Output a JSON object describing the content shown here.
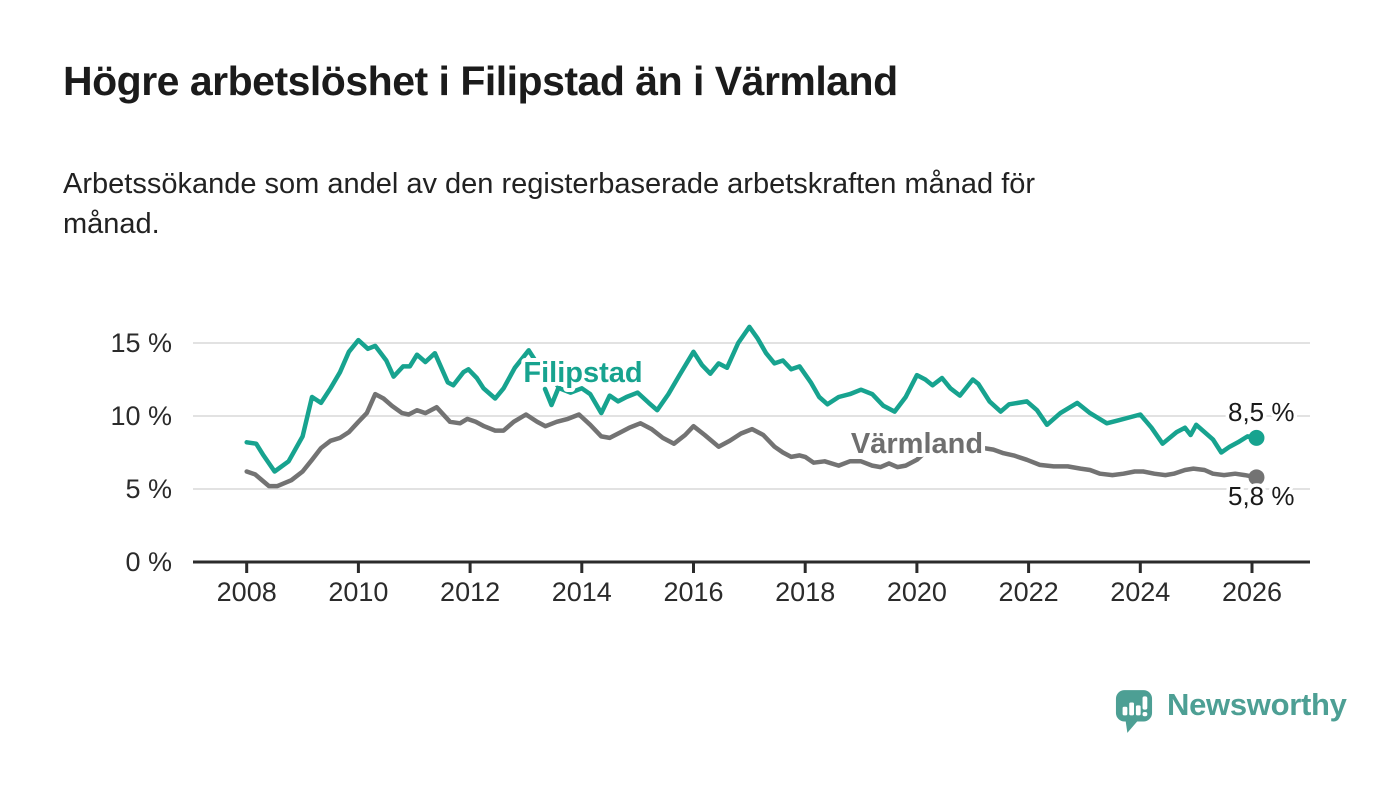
{
  "chart_data": {
    "type": "line",
    "title": "Högre arbetslöshet i Filipstad än i Värmland",
    "subtitle_lines": [
      "Arbetssökande som andel av den registerbaserade arbetskraften månad för",
      "månad."
    ],
    "grid": true,
    "legend": "inline-labels",
    "xlim": [
      2007.85,
      2027.05
    ],
    "ylim": [
      0,
      16.8
    ],
    "x_ticks": [
      2008,
      2010,
      2012,
      2014,
      2016,
      2018,
      2020,
      2022,
      2024,
      2026
    ],
    "x_tick_labels": [
      "2008",
      "2010",
      "2012",
      "2014",
      "2016",
      "2018",
      "2020",
      "2022",
      "2024",
      "2026"
    ],
    "y_ticks": [
      0,
      5,
      10,
      15
    ],
    "y_tick_labels": [
      "0 %",
      "5 %",
      "10 %",
      "15 %"
    ],
    "series": [
      {
        "name": "Filipstad",
        "color": "#17a38f",
        "end_label": "8,5 %",
        "end_value": 8.5,
        "points": [
          [
            2008.0,
            8.2
          ],
          [
            2008.17,
            8.1
          ],
          [
            2008.3,
            7.3
          ],
          [
            2008.5,
            6.2
          ],
          [
            2008.75,
            6.9
          ],
          [
            2009.0,
            8.6
          ],
          [
            2009.17,
            11.3
          ],
          [
            2009.33,
            10.9
          ],
          [
            2009.5,
            11.9
          ],
          [
            2009.67,
            13.0
          ],
          [
            2009.83,
            14.4
          ],
          [
            2010.0,
            15.2
          ],
          [
            2010.17,
            14.6
          ],
          [
            2010.3,
            14.8
          ],
          [
            2010.5,
            13.8
          ],
          [
            2010.63,
            12.7
          ],
          [
            2010.8,
            13.4
          ],
          [
            2010.92,
            13.4
          ],
          [
            2011.05,
            14.2
          ],
          [
            2011.2,
            13.7
          ],
          [
            2011.37,
            14.3
          ],
          [
            2011.6,
            12.3
          ],
          [
            2011.7,
            12.1
          ],
          [
            2011.88,
            13.0
          ],
          [
            2011.97,
            13.2
          ],
          [
            2012.12,
            12.6
          ],
          [
            2012.24,
            11.9
          ],
          [
            2012.45,
            11.2
          ],
          [
            2012.6,
            11.9
          ],
          [
            2012.8,
            13.3
          ],
          [
            2013.05,
            14.5
          ],
          [
            2013.2,
            13.6
          ],
          [
            2013.35,
            12.9
          ],
          [
            2013.5,
            12.4
          ],
          [
            2013.6,
            11.9
          ],
          [
            2013.8,
            11.6
          ],
          [
            2014.0,
            11.9
          ],
          [
            2014.15,
            11.5
          ],
          [
            2014.35,
            10.2
          ],
          [
            2014.5,
            11.4
          ],
          [
            2014.65,
            11.0
          ],
          [
            2014.8,
            11.3
          ],
          [
            2015.0,
            11.6
          ],
          [
            2015.2,
            10.9
          ],
          [
            2015.35,
            10.4
          ],
          [
            2015.55,
            11.5
          ],
          [
            2015.75,
            12.8
          ],
          [
            2016.0,
            14.4
          ],
          [
            2016.15,
            13.5
          ],
          [
            2016.3,
            12.9
          ],
          [
            2016.45,
            13.6
          ],
          [
            2016.6,
            13.3
          ],
          [
            2016.8,
            15.0
          ],
          [
            2017.0,
            16.1
          ],
          [
            2017.15,
            15.3
          ],
          [
            2017.3,
            14.3
          ],
          [
            2017.45,
            13.6
          ],
          [
            2017.6,
            13.8
          ],
          [
            2017.75,
            13.2
          ],
          [
            2017.9,
            13.4
          ],
          [
            2018.1,
            12.3
          ],
          [
            2018.25,
            11.3
          ],
          [
            2018.4,
            10.8
          ],
          [
            2018.6,
            11.3
          ],
          [
            2018.8,
            11.5
          ],
          [
            2019.0,
            11.8
          ],
          [
            2019.2,
            11.5
          ],
          [
            2019.4,
            10.7
          ],
          [
            2019.6,
            10.3
          ],
          [
            2019.8,
            11.3
          ],
          [
            2020.0,
            12.8
          ],
          [
            2020.15,
            12.5
          ],
          [
            2020.28,
            12.1
          ],
          [
            2020.45,
            12.6
          ],
          [
            2020.6,
            11.9
          ],
          [
            2020.77,
            11.4
          ],
          [
            2021.0,
            12.5
          ],
          [
            2021.1,
            12.2
          ],
          [
            2021.3,
            11.0
          ],
          [
            2021.5,
            10.3
          ],
          [
            2021.65,
            10.8
          ],
          [
            2021.97,
            11.0
          ],
          [
            2022.15,
            10.4
          ],
          [
            2022.33,
            9.4
          ],
          [
            2022.57,
            10.2
          ],
          [
            2022.87,
            10.9
          ],
          [
            2023.1,
            10.2
          ],
          [
            2023.4,
            9.5
          ],
          [
            2023.6,
            9.7
          ],
          [
            2023.8,
            9.9
          ],
          [
            2024.0,
            10.1
          ],
          [
            2024.2,
            9.2
          ],
          [
            2024.4,
            8.1
          ],
          [
            2024.65,
            8.9
          ],
          [
            2024.8,
            9.2
          ],
          [
            2024.9,
            8.7
          ],
          [
            2025.0,
            9.4
          ],
          [
            2025.15,
            8.9
          ],
          [
            2025.3,
            8.4
          ],
          [
            2025.45,
            7.5
          ],
          [
            2025.6,
            7.9
          ],
          [
            2025.75,
            8.2
          ],
          [
            2025.92,
            8.6
          ],
          [
            2026.08,
            8.5
          ]
        ]
      },
      {
        "name": "Värmland",
        "color": "#737373",
        "label_color": "#6f6f6f",
        "end_label": "5,8 %",
        "end_value": 5.8,
        "points": [
          [
            2008.0,
            6.2
          ],
          [
            2008.15,
            6.0
          ],
          [
            2008.4,
            5.2
          ],
          [
            2008.55,
            5.2
          ],
          [
            2008.8,
            5.6
          ],
          [
            2009.0,
            6.2
          ],
          [
            2009.17,
            7.0
          ],
          [
            2009.33,
            7.8
          ],
          [
            2009.5,
            8.3
          ],
          [
            2009.67,
            8.5
          ],
          [
            2009.83,
            8.9
          ],
          [
            2010.0,
            9.6
          ],
          [
            2010.15,
            10.2
          ],
          [
            2010.3,
            11.5
          ],
          [
            2010.45,
            11.2
          ],
          [
            2010.6,
            10.7
          ],
          [
            2010.78,
            10.2
          ],
          [
            2010.9,
            10.1
          ],
          [
            2011.05,
            10.4
          ],
          [
            2011.2,
            10.2
          ],
          [
            2011.4,
            10.6
          ],
          [
            2011.64,
            9.6
          ],
          [
            2011.82,
            9.5
          ],
          [
            2011.95,
            9.8
          ],
          [
            2012.1,
            9.6
          ],
          [
            2012.25,
            9.3
          ],
          [
            2012.45,
            9.0
          ],
          [
            2012.6,
            9.0
          ],
          [
            2012.78,
            9.6
          ],
          [
            2013.0,
            10.1
          ],
          [
            2013.2,
            9.6
          ],
          [
            2013.35,
            9.3
          ],
          [
            2013.55,
            9.6
          ],
          [
            2013.75,
            9.8
          ],
          [
            2013.95,
            10.1
          ],
          [
            2014.15,
            9.4
          ],
          [
            2014.35,
            8.6
          ],
          [
            2014.5,
            8.5
          ],
          [
            2014.7,
            8.9
          ],
          [
            2014.85,
            9.2
          ],
          [
            2015.05,
            9.5
          ],
          [
            2015.25,
            9.1
          ],
          [
            2015.45,
            8.5
          ],
          [
            2015.65,
            8.1
          ],
          [
            2015.85,
            8.7
          ],
          [
            2016.0,
            9.3
          ],
          [
            2016.2,
            8.7
          ],
          [
            2016.45,
            7.9
          ],
          [
            2016.65,
            8.3
          ],
          [
            2016.85,
            8.8
          ],
          [
            2017.05,
            9.1
          ],
          [
            2017.25,
            8.7
          ],
          [
            2017.45,
            7.9
          ],
          [
            2017.6,
            7.5
          ],
          [
            2017.75,
            7.2
          ],
          [
            2017.9,
            7.3
          ],
          [
            2018.0,
            7.2
          ],
          [
            2018.15,
            6.8
          ],
          [
            2018.35,
            6.9
          ],
          [
            2018.6,
            6.6
          ],
          [
            2018.8,
            6.9
          ],
          [
            2019.0,
            6.9
          ],
          [
            2019.2,
            6.6
          ],
          [
            2019.35,
            6.5
          ],
          [
            2019.5,
            6.75
          ],
          [
            2019.65,
            6.5
          ],
          [
            2019.8,
            6.6
          ],
          [
            2020.0,
            7.0
          ],
          [
            2020.2,
            7.7
          ],
          [
            2020.4,
            7.9
          ],
          [
            2020.6,
            7.8
          ],
          [
            2020.8,
            7.6
          ],
          [
            2021.0,
            7.9
          ],
          [
            2021.2,
            7.8
          ],
          [
            2021.37,
            7.7
          ],
          [
            2021.55,
            7.45
          ],
          [
            2021.73,
            7.3
          ],
          [
            2021.97,
            7.0
          ],
          [
            2022.2,
            6.65
          ],
          [
            2022.45,
            6.55
          ],
          [
            2022.7,
            6.55
          ],
          [
            2022.93,
            6.4
          ],
          [
            2023.1,
            6.3
          ],
          [
            2023.28,
            6.05
          ],
          [
            2023.5,
            5.95
          ],
          [
            2023.7,
            6.05
          ],
          [
            2023.9,
            6.2
          ],
          [
            2024.05,
            6.2
          ],
          [
            2024.25,
            6.05
          ],
          [
            2024.45,
            5.95
          ],
          [
            2024.6,
            6.05
          ],
          [
            2024.8,
            6.3
          ],
          [
            2024.95,
            6.4
          ],
          [
            2025.15,
            6.3
          ],
          [
            2025.3,
            6.05
          ],
          [
            2025.5,
            5.95
          ],
          [
            2025.7,
            6.05
          ],
          [
            2025.87,
            5.95
          ],
          [
            2026.08,
            5.8
          ]
        ]
      }
    ]
  },
  "branding": {
    "name": "Newsworthy",
    "color": "#4d9f94"
  }
}
